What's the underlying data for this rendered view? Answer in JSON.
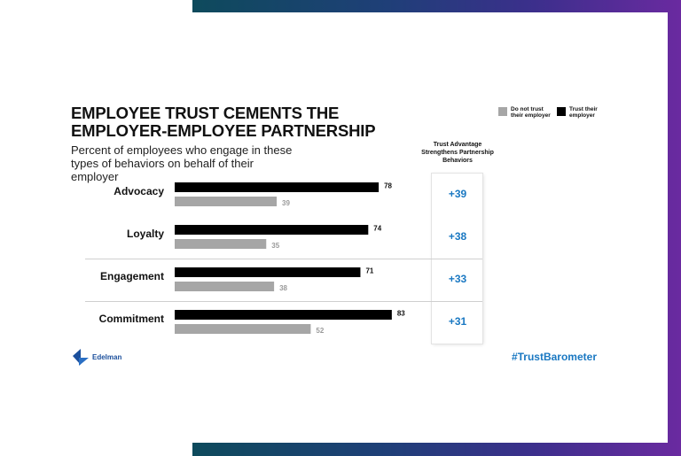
{
  "title": "EMPLOYEE TRUST CEMENTS THE EMPLOYER-EMPLOYEE PARTNERSHIP",
  "subtitle": "Percent of employees who engage in these types of behaviors on behalf of their employer",
  "legend": {
    "not_trust": "Do not trust their employer",
    "trust": "Trust their employer"
  },
  "advantage_header": "Trust Advantage Strengthens Partnership Behaviors",
  "brand": "Edelman",
  "hashtag": "#TrustBarometer",
  "colors": {
    "trust": "#000000",
    "not_trust": "#a6a6a6",
    "advantage": "#1a78c2",
    "brand": "#1b4f9c"
  },
  "chart_data": {
    "type": "bar",
    "orientation": "horizontal",
    "categories": [
      "Advocacy",
      "Loyalty",
      "Engagement",
      "Commitment"
    ],
    "series": [
      {
        "name": "Trust their employer",
        "values": [
          78,
          74,
          71,
          83
        ]
      },
      {
        "name": "Do not trust their employer",
        "values": [
          39,
          35,
          38,
          52
        ]
      }
    ],
    "advantage": [
      "+39",
      "+38",
      "+33",
      "+31"
    ],
    "xlim": [
      0,
      100
    ],
    "grid": false,
    "legend_position": "top-right"
  }
}
